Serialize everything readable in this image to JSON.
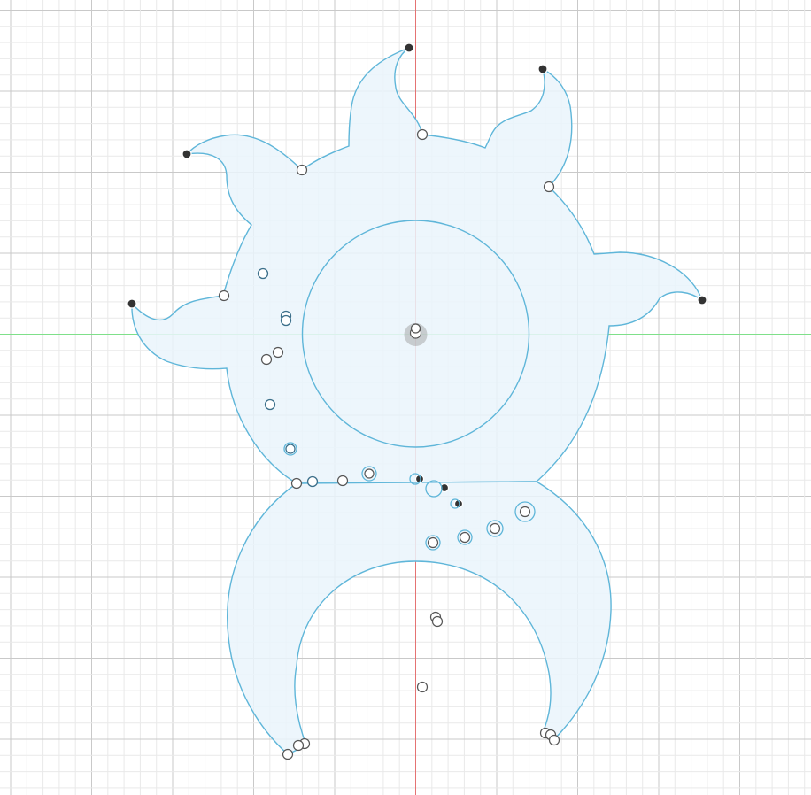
{
  "viewport": {
    "name": "sketch-canvas",
    "colors": {
      "background": "#ffffff",
      "grid_minor": "#e9e9e9",
      "grid_major": "#c9c9c9",
      "x_axis": "#7fe08a",
      "y_axis": "#e57373",
      "sketch_line": "#5fb6d9",
      "profile_fill": "#eaf4fb",
      "fixed_point": "#333333",
      "open_point": "#ffffff"
    }
  }
}
